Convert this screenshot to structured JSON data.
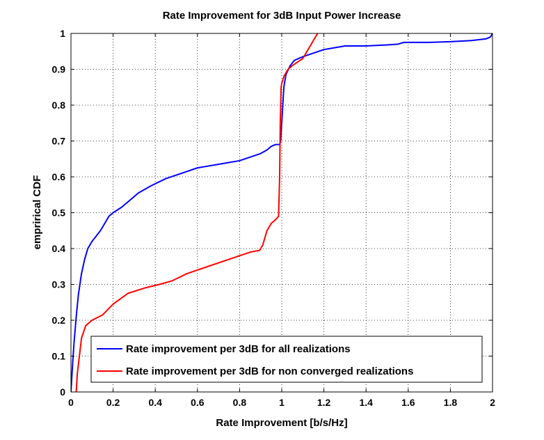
{
  "chart_data": {
    "type": "line",
    "title": "Rate Improvement for 3dB Input Power Increase",
    "xlabel": "Rate Improvement [b/s/Hz]",
    "ylabel": "emprirical CDF",
    "xlim": [
      0,
      2
    ],
    "ylim": [
      0,
      1
    ],
    "xticks": [
      "0",
      "0.2",
      "0.4",
      "0.6",
      "0.8",
      "1",
      "1.2",
      "1.4",
      "1.6",
      "1.8",
      "2"
    ],
    "yticks": [
      "0",
      "0.1",
      "0.2",
      "0.3",
      "0.4",
      "0.5",
      "0.6",
      "0.7",
      "0.8",
      "0.9",
      "1"
    ],
    "grid": true,
    "legend_position": "bottom-right",
    "series": [
      {
        "name": "Rate improvement per 3dB for all realizations",
        "color": "#0000ff",
        "x": [
          0,
          0.003,
          0.008,
          0.015,
          0.025,
          0.035,
          0.05,
          0.065,
          0.08,
          0.1,
          0.12,
          0.14,
          0.16,
          0.18,
          0.2,
          0.24,
          0.28,
          0.32,
          0.38,
          0.45,
          0.5,
          0.55,
          0.6,
          0.65,
          0.7,
          0.75,
          0.8,
          0.85,
          0.9,
          0.93,
          0.95,
          0.97,
          0.99,
          0.995,
          1.0,
          1.005,
          1.01,
          1.02,
          1.04,
          1.06,
          1.1,
          1.15,
          1.2,
          1.25,
          1.3,
          1.4,
          1.5,
          1.55,
          1.58,
          1.6,
          1.7,
          1.8,
          1.9,
          1.97,
          1.99,
          2.0
        ],
        "y": [
          0,
          0.03,
          0.08,
          0.14,
          0.21,
          0.27,
          0.33,
          0.37,
          0.4,
          0.42,
          0.435,
          0.45,
          0.47,
          0.49,
          0.5,
          0.515,
          0.535,
          0.555,
          0.575,
          0.595,
          0.605,
          0.615,
          0.625,
          0.63,
          0.635,
          0.64,
          0.645,
          0.655,
          0.665,
          0.675,
          0.685,
          0.69,
          0.69,
          0.7,
          0.75,
          0.8,
          0.85,
          0.885,
          0.91,
          0.925,
          0.935,
          0.945,
          0.955,
          0.96,
          0.965,
          0.965,
          0.968,
          0.97,
          0.975,
          0.975,
          0.975,
          0.977,
          0.98,
          0.985,
          0.99,
          1.0
        ]
      },
      {
        "name": "Rate improvement per 3dB for non converged realizations",
        "color": "#ff0000",
        "x": [
          0.025,
          0.03,
          0.04,
          0.05,
          0.07,
          0.1,
          0.15,
          0.2,
          0.27,
          0.35,
          0.42,
          0.48,
          0.55,
          0.65,
          0.75,
          0.85,
          0.895,
          0.91,
          0.93,
          0.95,
          0.97,
          0.985,
          0.99,
          0.993,
          0.997,
          1.0,
          1.01,
          1.02,
          1.03,
          1.05,
          1.1,
          1.13,
          1.16,
          1.17
        ],
        "y": [
          0,
          0.05,
          0.1,
          0.15,
          0.185,
          0.2,
          0.215,
          0.245,
          0.275,
          0.29,
          0.3,
          0.31,
          0.33,
          0.35,
          0.37,
          0.39,
          0.395,
          0.41,
          0.45,
          0.47,
          0.48,
          0.49,
          0.6,
          0.75,
          0.85,
          0.86,
          0.88,
          0.89,
          0.9,
          0.91,
          0.93,
          0.96,
          0.99,
          1.0
        ]
      }
    ]
  }
}
